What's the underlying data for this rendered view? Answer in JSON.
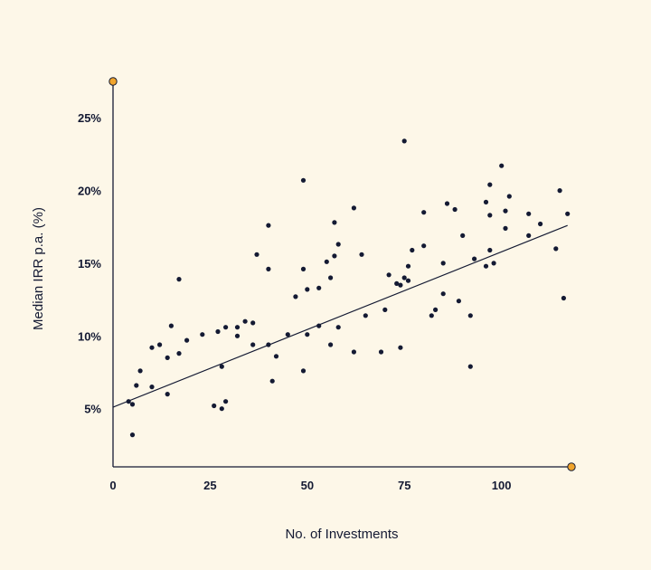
{
  "chart_data": {
    "type": "scatter",
    "xlabel": "No. of Investments",
    "ylabel": "Median IRR p.a. (%)",
    "xlim": [
      0,
      118
    ],
    "ylim": [
      1,
      27.5
    ],
    "x_ticks": [
      0,
      25,
      50,
      75,
      100
    ],
    "x_tick_labels": [
      "0",
      "25",
      "50",
      "75",
      "100"
    ],
    "y_ticks": [
      5,
      10,
      15,
      20,
      25
    ],
    "y_tick_labels": [
      "5%",
      "10%",
      "15%",
      "20%",
      "25%"
    ],
    "grid": false,
    "legend": "none",
    "colors": {
      "background": "#fdf7e8",
      "axis": "#141a33",
      "point": "#141a33",
      "axis_end_marker": "#f0a42c"
    },
    "points": [
      [
        4,
        5.5
      ],
      [
        5,
        5.3
      ],
      [
        5,
        3.2
      ],
      [
        6,
        6.6
      ],
      [
        7,
        7.6
      ],
      [
        10,
        6.5
      ],
      [
        10,
        9.2
      ],
      [
        12,
        9.4
      ],
      [
        14,
        6.0
      ],
      [
        14,
        8.5
      ],
      [
        15,
        10.7
      ],
      [
        17,
        8.8
      ],
      [
        17,
        13.9
      ],
      [
        19,
        9.7
      ],
      [
        23,
        10.1
      ],
      [
        26,
        5.2
      ],
      [
        27,
        10.3
      ],
      [
        28,
        7.9
      ],
      [
        28,
        5.0
      ],
      [
        29,
        10.6
      ],
      [
        29,
        5.5
      ],
      [
        32,
        10.6
      ],
      [
        32,
        10.0
      ],
      [
        34,
        11.0
      ],
      [
        36,
        9.4
      ],
      [
        36,
        10.9
      ],
      [
        37,
        15.6
      ],
      [
        40,
        17.6
      ],
      [
        40,
        14.6
      ],
      [
        40,
        9.4
      ],
      [
        41,
        6.9
      ],
      [
        42,
        8.6
      ],
      [
        45,
        10.1
      ],
      [
        47,
        12.7
      ],
      [
        49,
        20.7
      ],
      [
        49,
        14.6
      ],
      [
        49,
        7.6
      ],
      [
        50,
        13.2
      ],
      [
        50,
        10.1
      ],
      [
        53,
        13.3
      ],
      [
        53,
        10.7
      ],
      [
        55,
        15.1
      ],
      [
        56,
        14.0
      ],
      [
        56,
        9.4
      ],
      [
        57,
        15.5
      ],
      [
        57,
        17.8
      ],
      [
        58,
        16.3
      ],
      [
        58,
        10.6
      ],
      [
        62,
        18.8
      ],
      [
        62,
        8.9
      ],
      [
        64,
        15.6
      ],
      [
        65,
        11.4
      ],
      [
        69,
        8.9
      ],
      [
        70,
        11.8
      ],
      [
        71,
        14.2
      ],
      [
        73,
        13.6
      ],
      [
        74,
        13.5
      ],
      [
        74,
        9.2
      ],
      [
        75,
        14.0
      ],
      [
        75,
        23.4
      ],
      [
        76,
        14.8
      ],
      [
        76,
        13.8
      ],
      [
        77,
        15.9
      ],
      [
        80,
        18.5
      ],
      [
        80,
        16.2
      ],
      [
        82,
        11.4
      ],
      [
        83,
        11.8
      ],
      [
        85,
        12.9
      ],
      [
        85,
        15.0
      ],
      [
        86,
        19.1
      ],
      [
        88,
        18.7
      ],
      [
        89,
        12.4
      ],
      [
        90,
        16.9
      ],
      [
        92,
        11.4
      ],
      [
        92,
        7.9
      ],
      [
        93,
        15.3
      ],
      [
        96,
        19.2
      ],
      [
        96,
        14.8
      ],
      [
        97,
        20.4
      ],
      [
        97,
        15.9
      ],
      [
        97,
        18.3
      ],
      [
        98,
        15.0
      ],
      [
        100,
        21.7
      ],
      [
        101,
        18.6
      ],
      [
        101,
        17.4
      ],
      [
        102,
        19.6
      ],
      [
        107,
        18.4
      ],
      [
        107,
        16.9
      ],
      [
        110,
        17.7
      ],
      [
        114,
        16.0
      ],
      [
        115,
        20.0
      ],
      [
        116,
        12.6
      ],
      [
        117,
        18.4
      ]
    ],
    "trendline": {
      "x": [
        0,
        117
      ],
      "y": [
        5.1,
        17.6
      ]
    }
  }
}
